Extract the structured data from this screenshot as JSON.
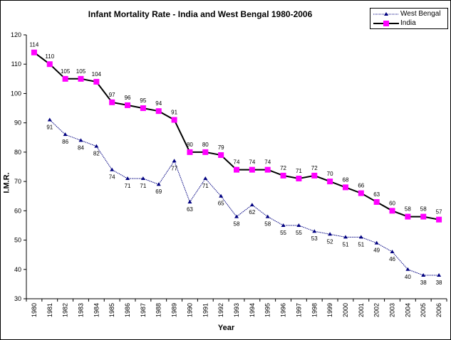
{
  "chart_data": {
    "type": "line",
    "title": "Infant Mortality Rate -  India and West Bengal 1980-2006",
    "xlabel": "Year",
    "ylabel": "I.M.R.",
    "ylim": [
      30,
      120
    ],
    "yticks": [
      30,
      40,
      50,
      60,
      70,
      80,
      90,
      100,
      110,
      120
    ],
    "grid": false,
    "legend_position": "top-right",
    "categories": [
      "1980",
      "1981",
      "1982",
      "1983",
      "1984",
      "1985",
      "1986",
      "1987",
      "1988",
      "1989",
      "1990",
      "1991",
      "1992",
      "1993",
      "1994",
      "1995",
      "1996",
      "1997",
      "1998",
      "1999",
      "2000",
      "2001",
      "2002",
      "2003",
      "2004",
      "2005",
      "2006"
    ],
    "series": [
      {
        "name": "West Bengal",
        "color": "#000080",
        "marker": "triangle",
        "values": [
          null,
          91,
          86,
          84,
          82,
          74,
          71,
          71,
          69,
          77,
          63,
          71,
          65,
          58,
          62,
          58,
          55,
          55,
          53,
          52,
          51,
          51,
          49,
          46,
          40,
          38,
          38
        ],
        "labels": [
          "",
          "91",
          "86",
          "84",
          "82",
          "74",
          "71",
          "71",
          "69",
          "77",
          "63",
          "71",
          "65",
          "58",
          "62",
          "58",
          "55",
          "55",
          "53",
          "52",
          "51",
          "51",
          "49",
          "46",
          "40",
          "38",
          "38"
        ]
      },
      {
        "name": "India",
        "color": "#000000",
        "marker_color": "#ff00ff",
        "marker": "square",
        "values": [
          114,
          110,
          105,
          105,
          104,
          97,
          96,
          95,
          94,
          91,
          80,
          80,
          79,
          74,
          74,
          74,
          72,
          71,
          72,
          70,
          68,
          66,
          63,
          60,
          58,
          58,
          57
        ],
        "labels": [
          "114",
          "110",
          "105",
          "105",
          "104",
          "97",
          "96",
          "95",
          "94",
          "91",
          "80",
          "80",
          "79",
          "74",
          "74",
          "74",
          "72",
          "71",
          "72",
          "70",
          "68",
          "66",
          "63",
          "60",
          "58",
          "58",
          "57"
        ]
      }
    ]
  }
}
